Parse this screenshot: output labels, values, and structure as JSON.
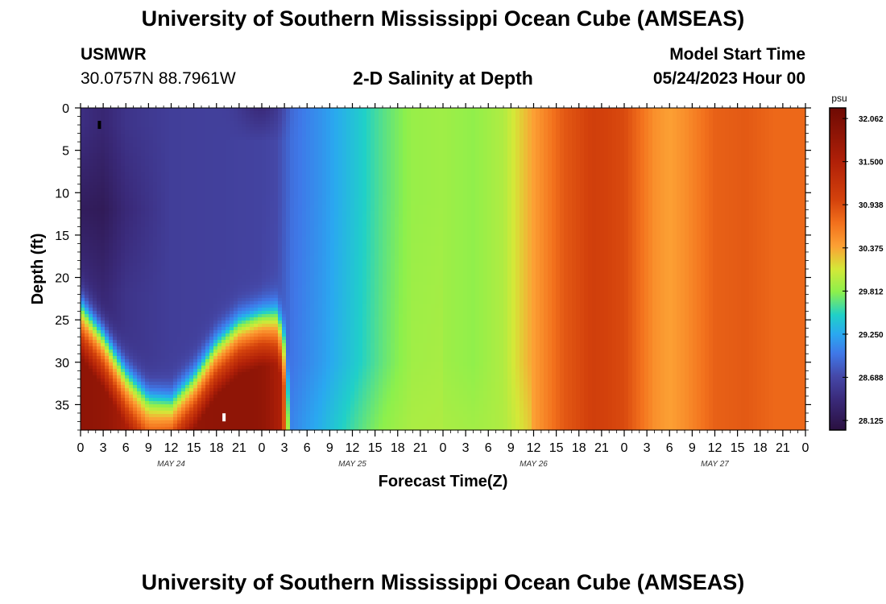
{
  "header": {
    "title": "University of Southern Mississippi Ocean Cube (AMSEAS)",
    "station": "USMWR",
    "coords": "30.0757N  88.7961W",
    "plot_title": "2-D Salinity at Depth",
    "model_start_label": "Model Start Time",
    "model_start_value": "05/24/2023 Hour 00"
  },
  "footer": {
    "title": "University of Southern Mississippi Ocean Cube (AMSEAS)"
  },
  "chart_data": {
    "type": "heatmap",
    "title": "2-D Salinity at Depth",
    "xlabel": "Forecast Time(Z)",
    "ylabel": "Depth (ft)",
    "x_range_hours": [
      0,
      96
    ],
    "x_tick_step_hours": 3,
    "x_tick_labels": [
      "0",
      "3",
      "6",
      "9",
      "12",
      "15",
      "18",
      "21",
      "0",
      "3",
      "6",
      "9",
      "12",
      "15",
      "18",
      "21",
      "0",
      "3",
      "6",
      "9",
      "12",
      "15",
      "18",
      "21",
      "0",
      "3",
      "6",
      "9",
      "12",
      "15",
      "18",
      "21",
      "0"
    ],
    "day_labels": [
      "MAY 24",
      "MAY 25",
      "MAY 26",
      "MAY 27"
    ],
    "y_range_ft": [
      0,
      38
    ],
    "y_ticks": [
      0,
      5,
      10,
      15,
      20,
      25,
      30,
      35
    ],
    "colorbar": {
      "unit": "psu",
      "min": 28.0,
      "max": 32.2,
      "tick_labels": [
        "32.062",
        "31.500",
        "30.938",
        "30.375",
        "29.812",
        "29.250",
        "28.688",
        "28.125"
      ],
      "stops": [
        {
          "v": 28.0,
          "c": "#2a1040"
        },
        {
          "v": 28.4,
          "c": "#3a2a7a"
        },
        {
          "v": 28.7,
          "c": "#4548a8"
        },
        {
          "v": 29.0,
          "c": "#3f78e8"
        },
        {
          "v": 29.25,
          "c": "#2aa8f0"
        },
        {
          "v": 29.5,
          "c": "#20d0c8"
        },
        {
          "v": 29.8,
          "c": "#8cf04c"
        },
        {
          "v": 30.1,
          "c": "#d4e838"
        },
        {
          "v": 30.4,
          "c": "#fca034"
        },
        {
          "v": 30.7,
          "c": "#f2701c"
        },
        {
          "v": 31.0,
          "c": "#d4420c"
        },
        {
          "v": 31.5,
          "c": "#b02008"
        },
        {
          "v": 32.2,
          "c": "#6e0a04"
        }
      ]
    },
    "salinity_model": {
      "surface_time_hours": [
        0,
        3,
        6,
        12,
        18,
        24,
        26,
        28,
        32,
        36,
        40,
        44,
        48,
        52,
        56,
        60,
        64,
        68,
        72,
        76,
        78,
        80,
        84,
        88,
        92,
        96
      ],
      "surface_psu": [
        28.45,
        28.35,
        28.5,
        28.6,
        28.62,
        28.65,
        28.7,
        28.95,
        29.15,
        29.4,
        29.65,
        29.85,
        29.88,
        29.82,
        29.95,
        30.4,
        30.85,
        31.05,
        30.95,
        30.5,
        30.4,
        30.5,
        30.8,
        30.85,
        30.75,
        30.75
      ],
      "halocline_time_hours": [
        0,
        3,
        6,
        9,
        12,
        15,
        18,
        21,
        24,
        26,
        27,
        28
      ],
      "halocline_depth_ft": [
        22.5,
        26.0,
        30.5,
        33.5,
        33.8,
        31.0,
        27.0,
        24.5,
        23.5,
        23.3,
        26.0,
        36.0
      ],
      "bottom_peak_psu": 31.85
    },
    "markers": [
      {
        "time_hours": 2.5,
        "depth_ft": 2.0,
        "color": "#000000"
      },
      {
        "time_hours": 19.0,
        "depth_ft": 36.5,
        "color": "#ffffff"
      }
    ]
  }
}
